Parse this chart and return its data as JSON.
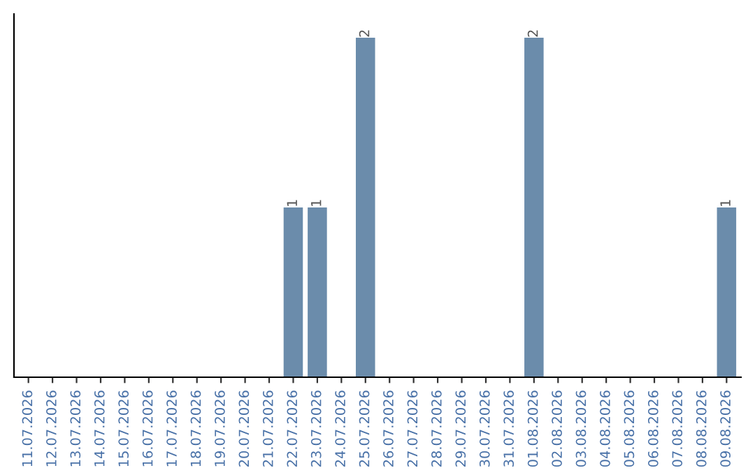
{
  "chart_data": {
    "type": "bar",
    "categories": [
      "11.07.2026",
      "12.07.2026",
      "13.07.2026",
      "14.07.2026",
      "15.07.2026",
      "16.07.2026",
      "17.07.2026",
      "18.07.2026",
      "19.07.2026",
      "20.07.2026",
      "21.07.2026",
      "22.07.2026",
      "23.07.2026",
      "24.07.2026",
      "25.07.2026",
      "26.07.2026",
      "27.07.2026",
      "28.07.2026",
      "29.07.2026",
      "30.07.2026",
      "31.07.2026",
      "01.08.2026",
      "02.08.2026",
      "03.08.2026",
      "04.08.2026",
      "05.08.2026",
      "06.08.2026",
      "07.08.2026",
      "08.08.2026",
      "09.08.2026"
    ],
    "values": [
      0,
      0,
      0,
      0,
      0,
      0,
      0,
      0,
      0,
      0,
      0,
      1,
      1,
      0,
      2,
      0,
      0,
      0,
      0,
      0,
      0,
      2,
      0,
      0,
      0,
      0,
      0,
      0,
      0,
      1
    ],
    "value_labels": [
      null,
      null,
      null,
      null,
      null,
      null,
      null,
      null,
      null,
      null,
      null,
      "1",
      "1",
      null,
      "2",
      null,
      null,
      null,
      null,
      null,
      null,
      "2",
      null,
      null,
      null,
      null,
      null,
      null,
      null,
      "1"
    ],
    "color": "#6b8cab",
    "tick_labels": "x",
    "grid": false,
    "legend": false
  }
}
